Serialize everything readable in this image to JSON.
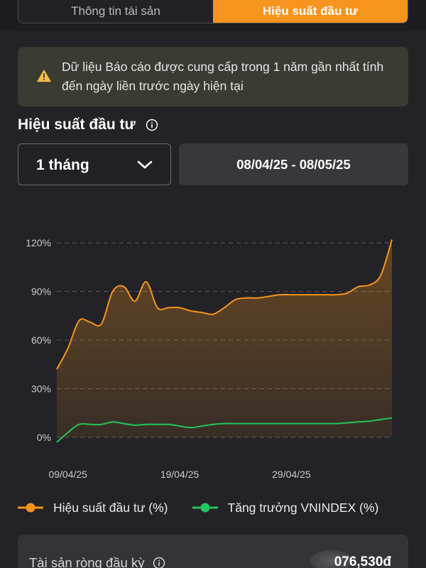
{
  "tabs": [
    {
      "label": "Thông tin tài sản",
      "active": false
    },
    {
      "label": "Hiệu suất đầu tư",
      "active": true
    }
  ],
  "notice": {
    "icon": "warning-icon",
    "text": "Dữ liệu Báo cáo được cung cấp trong 1 năm gần nhất tính đến ngày liền trước ngày hiện tại"
  },
  "section": {
    "title": "Hiệu suất đầu tư",
    "icon": "info-icon"
  },
  "period": {
    "selected": "1 tháng",
    "icon": "chevron-down-icon"
  },
  "date_range": "08/04/25 - 08/05/25",
  "colors": {
    "accent": "#f7941d",
    "green": "#22c55e",
    "background": "#232327"
  },
  "chart_data": {
    "type": "area",
    "x": [
      "2025-04-08",
      "2025-04-09",
      "2025-04-10",
      "2025-04-11",
      "2025-04-12",
      "2025-04-13",
      "2025-04-14",
      "2025-04-15",
      "2025-04-16",
      "2025-04-17",
      "2025-04-18",
      "2025-04-19",
      "2025-04-20",
      "2025-04-21",
      "2025-04-22",
      "2025-04-23",
      "2025-04-24",
      "2025-04-25",
      "2025-04-26",
      "2025-04-27",
      "2025-04-28",
      "2025-04-29",
      "2025-04-30",
      "2025-05-01",
      "2025-05-02",
      "2025-05-03",
      "2025-05-04",
      "2025-05-05",
      "2025-05-06",
      "2025-05-07",
      "2025-05-08"
    ],
    "series": [
      {
        "name": "Hiệu suất đầu tư (%)",
        "color": "#f7941d",
        "values": [
          42,
          55,
          72,
          71,
          70,
          90,
          93,
          84,
          96,
          80,
          80,
          80,
          78,
          77,
          76,
          80,
          85,
          86,
          86,
          87,
          88,
          88,
          88,
          88,
          88,
          88,
          89,
          93,
          94,
          100,
          122
        ]
      },
      {
        "name": "Tăng trưởng VNINDEX (%)",
        "color": "#22c55e",
        "values": [
          -3,
          3,
          8,
          8,
          8,
          9.5,
          8.5,
          7.5,
          8,
          8,
          8,
          7,
          6,
          7,
          8,
          8.5,
          8.5,
          8.5,
          8.5,
          8.5,
          8.5,
          8.5,
          8.5,
          8.5,
          8.5,
          8.5,
          9,
          9.5,
          10,
          11,
          12
        ]
      }
    ],
    "x_ticks": [
      "09/04/25",
      "19/04/25",
      "29/04/25"
    ],
    "y_ticks": [
      "0%",
      "30%",
      "60%",
      "90%",
      "120%"
    ],
    "ylim": [
      0,
      120
    ],
    "grid": "horizontal dashed",
    "legend_position": "bottom"
  },
  "legend": [
    {
      "label": "Hiệu suất đầu tư (%)",
      "color": "#f7941d"
    },
    {
      "label": "Tăng trưởng VNINDEX (%)",
      "color": "#22c55e"
    }
  ],
  "bottom_card": {
    "label": "Tài sản ròng đầu kỳ",
    "value": "076,530đ",
    "icon": "info-icon"
  }
}
